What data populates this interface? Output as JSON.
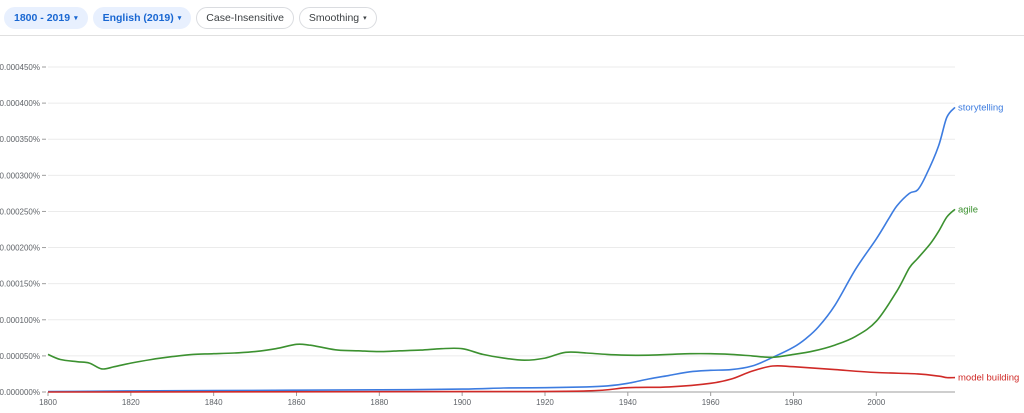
{
  "toolbar": {
    "year_range": "1800 - 2019",
    "corpus": "English (2019)",
    "case_insensitive": "Case-Insensitive",
    "smoothing": "Smoothing",
    "caret": "▾"
  },
  "colors": {
    "active_chip_bg": "#e8f0fe",
    "active_chip_text": "#1967d2",
    "grid": "#ebebeb"
  },
  "chart_data": {
    "type": "line",
    "title": "",
    "xlabel": "",
    "ylabel": "",
    "xlim": [
      1800,
      2019
    ],
    "ylim": [
      0,
      0.00045
    ],
    "grid": true,
    "y_ticks": [
      {
        "value": 0.0,
        "label": "0.000000%"
      },
      {
        "value": 5e-05,
        "label": "0.000050%"
      },
      {
        "value": 0.0001,
        "label": "0.000100%"
      },
      {
        "value": 0.00015,
        "label": "0.000150%"
      },
      {
        "value": 0.0002,
        "label": "0.000200%"
      },
      {
        "value": 0.00025,
        "label": "0.000250%"
      },
      {
        "value": 0.0003,
        "label": "0.000300%"
      },
      {
        "value": 0.00035,
        "label": "0.000350%"
      },
      {
        "value": 0.0004,
        "label": "0.000400%"
      },
      {
        "value": 0.00045,
        "label": "0.000450%"
      }
    ],
    "x_ticks": [
      1800,
      1820,
      1840,
      1860,
      1880,
      1900,
      1920,
      1940,
      1960,
      1980,
      2000
    ],
    "series": [
      {
        "name": "storytelling",
        "color": "#3d7ce0",
        "x": [
          1800,
          1810,
          1820,
          1840,
          1860,
          1880,
          1900,
          1910,
          1920,
          1930,
          1935,
          1940,
          1945,
          1950,
          1955,
          1960,
          1965,
          1970,
          1975,
          1980,
          1983,
          1986,
          1990,
          1995,
          2000,
          2003,
          2005,
          2008,
          2010,
          2012,
          2015,
          2017,
          2019
        ],
        "y": [
          5e-07,
          1e-06,
          1.5e-06,
          2e-06,
          2.5e-06,
          3e-06,
          4e-06,
          5.5e-06,
          6e-06,
          7e-06,
          8.5e-06,
          1.2e-05,
          1.8e-05,
          2.3e-05,
          2.8e-05,
          3e-05,
          3.1e-05,
          3.6e-05,
          4.8e-05,
          6.2e-05,
          7.4e-05,
          9e-05,
          0.00012,
          0.00017,
          0.000212,
          0.00024,
          0.000258,
          0.000275,
          0.00028,
          0.0003,
          0.00034,
          0.00038,
          0.000394
        ]
      },
      {
        "name": "agile",
        "color": "#3c9130",
        "x": [
          1800,
          1803,
          1807,
          1810,
          1813,
          1816,
          1820,
          1825,
          1830,
          1835,
          1840,
          1845,
          1850,
          1855,
          1860,
          1863,
          1866,
          1870,
          1875,
          1880,
          1885,
          1890,
          1895,
          1900,
          1905,
          1910,
          1915,
          1920,
          1925,
          1930,
          1935,
          1940,
          1945,
          1950,
          1955,
          1960,
          1965,
          1970,
          1975,
          1980,
          1985,
          1990,
          1995,
          2000,
          2005,
          2008,
          2010,
          2013,
          2015,
          2017,
          2019
        ],
        "y": [
          5.2e-05,
          4.5e-05,
          4.2e-05,
          4e-05,
          3.2e-05,
          3.5e-05,
          4e-05,
          4.5e-05,
          4.9e-05,
          5.2e-05,
          5.3e-05,
          5.4e-05,
          5.6e-05,
          6e-05,
          6.6e-05,
          6.5e-05,
          6.2e-05,
          5.8e-05,
          5.7e-05,
          5.6e-05,
          5.7e-05,
          5.8e-05,
          6e-05,
          6e-05,
          5.2e-05,
          4.7e-05,
          4.4e-05,
          4.7e-05,
          5.5e-05,
          5.4e-05,
          5.2e-05,
          5.1e-05,
          5.1e-05,
          5.2e-05,
          5.3e-05,
          5.3e-05,
          5.2e-05,
          5e-05,
          4.8e-05,
          5.2e-05,
          5.7e-05,
          6.5e-05,
          7.7e-05,
          9.8e-05,
          0.00014,
          0.000172,
          0.000185,
          0.000205,
          0.000222,
          0.000242,
          0.000253
        ]
      },
      {
        "name": "model building",
        "color": "#d02a27",
        "x": [
          1800,
          1900,
          1930,
          1940,
          1950,
          1960,
          1965,
          1970,
          1975,
          1980,
          1990,
          2000,
          2010,
          2015,
          2017,
          2019
        ],
        "y": [
          0.0,
          5e-07,
          1.5e-06,
          6e-06,
          7e-06,
          1.2e-05,
          1.8e-05,
          2.9e-05,
          3.6e-05,
          3.5e-05,
          3.1e-05,
          2.7e-05,
          2.5e-05,
          2.2e-05,
          2e-05,
          2e-05
        ]
      }
    ]
  }
}
